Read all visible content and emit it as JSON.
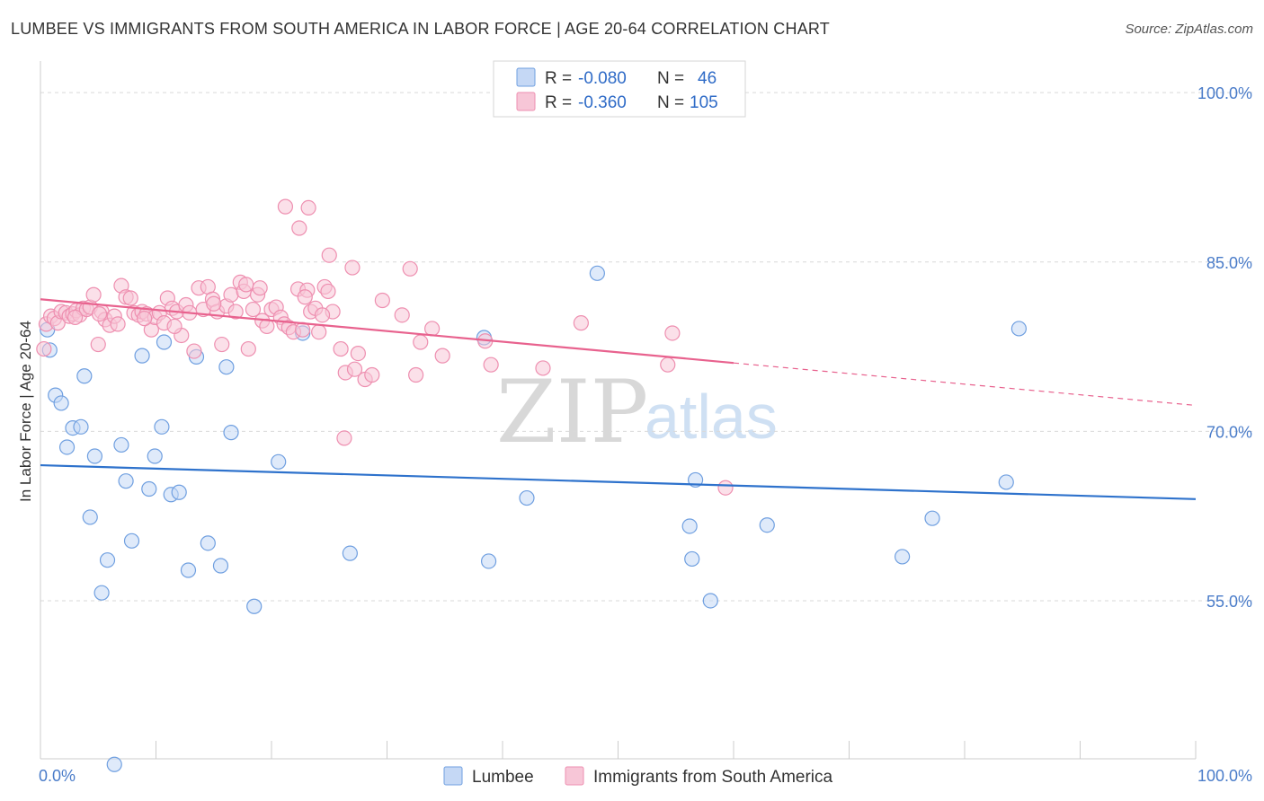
{
  "title": "LUMBEE VS IMMIGRANTS FROM SOUTH AMERICA IN LABOR FORCE | AGE 20-64 CORRELATION CHART",
  "source": "Source: ZipAtlas.com",
  "watermark": {
    "zip": "ZIP",
    "atlas": "atlas"
  },
  "colors": {
    "lumbee": "#6f9fe0",
    "lumbee_fill": "#c5d8f5",
    "lumbee_line": "#2e72cc",
    "immigrants": "#ee8fb0",
    "immigrants_fill": "#f7c6d7",
    "immigrants_line": "#e8628e",
    "grid": "#d9d9d9",
    "tick_text": "#4a7cc9"
  },
  "legend": {
    "rows": [
      {
        "r_label": "R = ",
        "r_value": "-0.080",
        "n_label": "N = ",
        "n_value": "46"
      },
      {
        "r_label": "R = ",
        "r_value": "-0.360",
        "n_label": "N = ",
        "n_value": "105"
      }
    ]
  },
  "chart_data": {
    "type": "scatter",
    "title": "LUMBEE VS IMMIGRANTS FROM SOUTH AMERICA IN LABOR FORCE | AGE 20-64 CORRELATION CHART",
    "xlabel": "",
    "ylabel": "In Labor Force | Age 20-64",
    "xlim": [
      0,
      100
    ],
    "ylim": [
      41,
      102
    ],
    "x_tick_labels": [
      "0.0%",
      "100.0%"
    ],
    "y_ticks": [
      55,
      70,
      85,
      100
    ],
    "y_tick_labels": [
      "55.0%",
      "70.0%",
      "85.0%",
      "100.0%"
    ],
    "grid": true,
    "legend_position": "top-center",
    "series": [
      {
        "name": "Lumbee",
        "r": -0.08,
        "n": 46,
        "trend": {
          "x0": 0,
          "y0": 67.0,
          "x1": 100,
          "y1": 64.0,
          "dashed_from": null
        },
        "points": [
          [
            0.6,
            79.0
          ],
          [
            0.8,
            77.2
          ],
          [
            1.3,
            73.2
          ],
          [
            1.8,
            72.5
          ],
          [
            2.3,
            68.6
          ],
          [
            2.8,
            70.3
          ],
          [
            3.5,
            70.4
          ],
          [
            3.8,
            74.9
          ],
          [
            4.3,
            62.4
          ],
          [
            4.7,
            67.8
          ],
          [
            5.3,
            55.7
          ],
          [
            5.8,
            58.6
          ],
          [
            6.4,
            40.5
          ],
          [
            7.0,
            68.8
          ],
          [
            7.4,
            65.6
          ],
          [
            7.9,
            60.3
          ],
          [
            8.8,
            76.7
          ],
          [
            9.4,
            64.9
          ],
          [
            9.9,
            67.8
          ],
          [
            10.5,
            70.4
          ],
          [
            10.7,
            77.9
          ],
          [
            11.3,
            64.4
          ],
          [
            12.0,
            64.6
          ],
          [
            12.8,
            57.7
          ],
          [
            13.5,
            76.6
          ],
          [
            14.5,
            60.1
          ],
          [
            15.6,
            58.1
          ],
          [
            16.1,
            75.7
          ],
          [
            16.5,
            69.9
          ],
          [
            18.5,
            54.5
          ],
          [
            20.6,
            67.3
          ],
          [
            22.7,
            78.7
          ],
          [
            26.8,
            59.2
          ],
          [
            38.4,
            78.3
          ],
          [
            38.8,
            58.5
          ],
          [
            42.1,
            64.1
          ],
          [
            48.2,
            84.0
          ],
          [
            56.2,
            61.6
          ],
          [
            56.4,
            58.7
          ],
          [
            56.7,
            65.7
          ],
          [
            58.0,
            55.0
          ],
          [
            62.9,
            61.7
          ],
          [
            74.6,
            58.9
          ],
          [
            77.2,
            62.3
          ],
          [
            84.7,
            79.1
          ],
          [
            83.6,
            65.5
          ]
        ]
      },
      {
        "name": "Immigrants from South America",
        "r": -0.36,
        "n": 105,
        "trend": {
          "x0": 0,
          "y0": 81.7,
          "x1": 100,
          "y1": 72.3,
          "dashed_from": 60
        },
        "points": [
          [
            0.3,
            77.3
          ],
          [
            0.5,
            79.5
          ],
          [
            0.9,
            80.2
          ],
          [
            1.2,
            80.0
          ],
          [
            1.5,
            79.6
          ],
          [
            1.8,
            80.6
          ],
          [
            2.2,
            80.5
          ],
          [
            2.5,
            80.2
          ],
          [
            2.8,
            80.4
          ],
          [
            3.1,
            80.7
          ],
          [
            3.4,
            80.3
          ],
          [
            3.7,
            80.9
          ],
          [
            4.0,
            80.8
          ],
          [
            4.3,
            81.0
          ],
          [
            4.6,
            82.1
          ],
          [
            5.0,
            77.7
          ],
          [
            5.3,
            80.6
          ],
          [
            5.6,
            79.9
          ],
          [
            6.0,
            79.4
          ],
          [
            6.4,
            80.2
          ],
          [
            6.7,
            79.5
          ],
          [
            7.0,
            82.9
          ],
          [
            7.4,
            81.9
          ],
          [
            7.8,
            81.8
          ],
          [
            8.1,
            80.5
          ],
          [
            8.5,
            80.3
          ],
          [
            8.8,
            80.6
          ],
          [
            9.2,
            80.4
          ],
          [
            9.6,
            79.0
          ],
          [
            9.9,
            80.1
          ],
          [
            10.3,
            80.5
          ],
          [
            10.7,
            79.6
          ],
          [
            11.0,
            81.8
          ],
          [
            11.4,
            80.9
          ],
          [
            11.8,
            80.6
          ],
          [
            12.2,
            78.5
          ],
          [
            12.6,
            81.2
          ],
          [
            12.9,
            80.5
          ],
          [
            13.3,
            77.1
          ],
          [
            13.7,
            82.7
          ],
          [
            14.1,
            80.8
          ],
          [
            14.5,
            82.8
          ],
          [
            14.9,
            81.7
          ],
          [
            15.3,
            80.6
          ],
          [
            15.7,
            77.7
          ],
          [
            16.1,
            81.1
          ],
          [
            16.5,
            82.1
          ],
          [
            16.9,
            80.6
          ],
          [
            17.3,
            83.2
          ],
          [
            17.6,
            82.4
          ],
          [
            18.0,
            77.3
          ],
          [
            18.4,
            80.8
          ],
          [
            18.8,
            82.1
          ],
          [
            19.2,
            79.8
          ],
          [
            19.6,
            79.3
          ],
          [
            20.0,
            80.8
          ],
          [
            20.4,
            81.0
          ],
          [
            20.8,
            80.1
          ],
          [
            21.1,
            79.5
          ],
          [
            21.5,
            79.2
          ],
          [
            21.9,
            78.8
          ],
          [
            22.3,
            82.6
          ],
          [
            22.7,
            79.0
          ],
          [
            23.1,
            82.5
          ],
          [
            23.4,
            80.6
          ],
          [
            23.8,
            80.9
          ],
          [
            24.1,
            78.8
          ],
          [
            24.6,
            82.8
          ],
          [
            24.9,
            82.4
          ],
          [
            25.3,
            80.6
          ],
          [
            26.0,
            77.3
          ],
          [
            26.4,
            75.2
          ],
          [
            27.0,
            84.5
          ],
          [
            27.5,
            76.9
          ],
          [
            28.1,
            74.6
          ],
          [
            28.7,
            75.0
          ],
          [
            29.6,
            81.6
          ],
          [
            31.3,
            80.3
          ],
          [
            32.0,
            84.4
          ],
          [
            32.5,
            75.0
          ],
          [
            32.9,
            77.9
          ],
          [
            33.9,
            79.1
          ],
          [
            34.8,
            76.7
          ],
          [
            38.5,
            78.0
          ],
          [
            39.0,
            75.9
          ],
          [
            43.5,
            75.6
          ],
          [
            46.8,
            79.6
          ],
          [
            54.3,
            75.9
          ],
          [
            54.7,
            78.7
          ],
          [
            59.3,
            65.0
          ],
          [
            21.2,
            89.9
          ],
          [
            22.4,
            88.0
          ],
          [
            23.2,
            89.8
          ],
          [
            25.0,
            85.6
          ],
          [
            26.3,
            69.4
          ],
          [
            27.2,
            75.5
          ],
          [
            3.0,
            80.1
          ],
          [
            5.1,
            80.4
          ],
          [
            9.0,
            80.0
          ],
          [
            11.6,
            79.3
          ],
          [
            15.0,
            81.3
          ],
          [
            17.8,
            83.0
          ],
          [
            19.0,
            82.7
          ],
          [
            22.9,
            81.9
          ],
          [
            24.4,
            80.3
          ]
        ]
      }
    ]
  },
  "bottom_legend": [
    {
      "label": "Lumbee"
    },
    {
      "label": "Immigrants from South America"
    }
  ]
}
